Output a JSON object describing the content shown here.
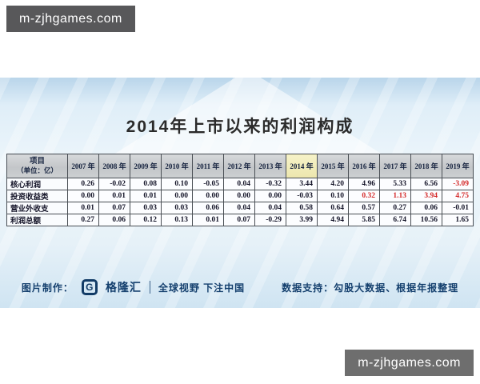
{
  "watermarks": {
    "top_left": "m-zjhgames.com",
    "bottom_right": "m-zjhgames.com"
  },
  "infographic": {
    "title": "2014年上市以来的利润构成",
    "background_watermark": "格隆汇",
    "table": {
      "corner_header_line1": "项目",
      "corner_header_line2": "（单位：亿）",
      "year_headers": [
        "2007 年",
        "2008 年",
        "2009 年",
        "2010 年",
        "2011 年",
        "2012 年",
        "2013 年",
        "2014 年",
        "2015 年",
        "2016 年",
        "2017 年",
        "2018 年",
        "2019 年"
      ],
      "highlight_year": "2014 年",
      "rows": [
        {
          "label": "核心利润",
          "values": [
            "0.26",
            "-0.02",
            "0.08",
            "0.10",
            "-0.05",
            "0.04",
            "-0.32",
            "3.44",
            "4.20",
            "4.96",
            "5.33",
            "6.56",
            "-3.09"
          ],
          "red_indices": [
            12
          ]
        },
        {
          "label": "投资收益类",
          "values": [
            "0.00",
            "0.01",
            "0.01",
            "0.00",
            "0.00",
            "0.00",
            "0.00",
            "-0.03",
            "0.10",
            "0.32",
            "1.13",
            "3.94",
            "4.75"
          ],
          "red_indices": [
            9,
            10,
            11,
            12
          ]
        },
        {
          "label": "营业外收支",
          "values": [
            "0.01",
            "0.07",
            "0.03",
            "0.03",
            "0.06",
            "0.04",
            "0.04",
            "0.58",
            "0.64",
            "0.57",
            "0.27",
            "0.06",
            "-0.01"
          ],
          "red_indices": []
        },
        {
          "label": "利润总额",
          "values": [
            "0.27",
            "0.06",
            "0.12",
            "0.13",
            "0.01",
            "0.07",
            "-0.29",
            "3.99",
            "4.94",
            "5.85",
            "6.74",
            "10.56",
            "1.65"
          ],
          "red_indices": []
        }
      ]
    },
    "footer": {
      "credit_label": "图片制作：",
      "logo_glyph": "G",
      "brand_name": "格隆汇",
      "slogan": "全球视野 下注中国",
      "data_support": "数据支持：勾股大数据、根据年报整理"
    }
  },
  "colors": {
    "watermark_bg": "#5f5f61",
    "panel_blue": "#dbeaf6",
    "header_silver": "#c7cacd",
    "highlight_yellow": "#f2eec2",
    "negative_red": "#d42a2a",
    "footer_blue": "#15406e",
    "title_text": "#2b2b2b"
  },
  "chart_data": {
    "type": "table",
    "title": "2014年上市以来的利润构成",
    "unit": "亿",
    "categories": [
      2007,
      2008,
      2009,
      2010,
      2011,
      2012,
      2013,
      2014,
      2015,
      2016,
      2017,
      2018,
      2019
    ],
    "highlighted_category": 2014,
    "series": [
      {
        "name": "核心利润",
        "values": [
          0.26,
          -0.02,
          0.08,
          0.1,
          -0.05,
          0.04,
          -0.32,
          3.44,
          4.2,
          4.96,
          5.33,
          6.56,
          -3.09
        ]
      },
      {
        "name": "投资收益类",
        "values": [
          0.0,
          0.01,
          0.01,
          0.0,
          0.0,
          0.0,
          0.0,
          -0.03,
          0.1,
          0.32,
          1.13,
          3.94,
          4.75
        ]
      },
      {
        "name": "营业外收支",
        "values": [
          0.01,
          0.07,
          0.03,
          0.03,
          0.06,
          0.04,
          0.04,
          0.58,
          0.64,
          0.57,
          0.27,
          0.06,
          -0.01
        ]
      },
      {
        "name": "利润总额",
        "values": [
          0.27,
          0.06,
          0.12,
          0.13,
          0.01,
          0.07,
          -0.29,
          3.99,
          4.94,
          5.85,
          6.74,
          10.56,
          1.65
        ]
      }
    ]
  }
}
